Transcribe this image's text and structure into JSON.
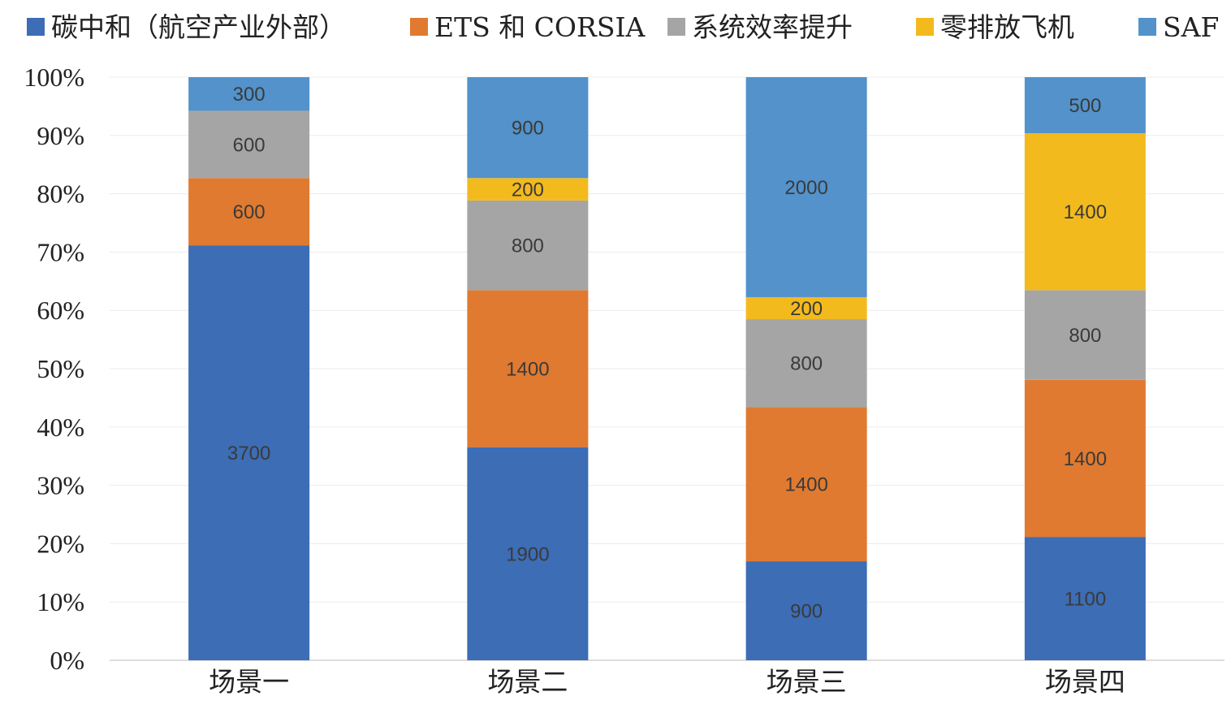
{
  "chart_data": {
    "type": "bar",
    "stacking": "percent",
    "categories": [
      "场景一",
      "场景二",
      "场景三",
      "场景四"
    ],
    "series": [
      {
        "name": "碳中和（航空产业外部）",
        "color": "#3C6DB5",
        "values": [
          3700,
          1900,
          900,
          1100
        ]
      },
      {
        "name": "ETS 和 CORSIA",
        "color": "#E07A30",
        "values": [
          600,
          1400,
          1400,
          1400
        ]
      },
      {
        "name": "系统效率提升",
        "color": "#A5A5A5",
        "values": [
          600,
          800,
          800,
          800
        ]
      },
      {
        "name": "零排放飞机",
        "color": "#F3BA1E",
        "values": [
          0,
          200,
          200,
          1400
        ]
      },
      {
        "name": "SAF",
        "color": "#5392CB",
        "values": [
          300,
          900,
          2000,
          500
        ]
      }
    ],
    "y_ticks": [
      "0%",
      "10%",
      "20%",
      "30%",
      "40%",
      "50%",
      "60%",
      "70%",
      "80%",
      "90%",
      "100%"
    ],
    "ylim": [
      0,
      100
    ],
    "grid": true,
    "legend_position": "top"
  }
}
